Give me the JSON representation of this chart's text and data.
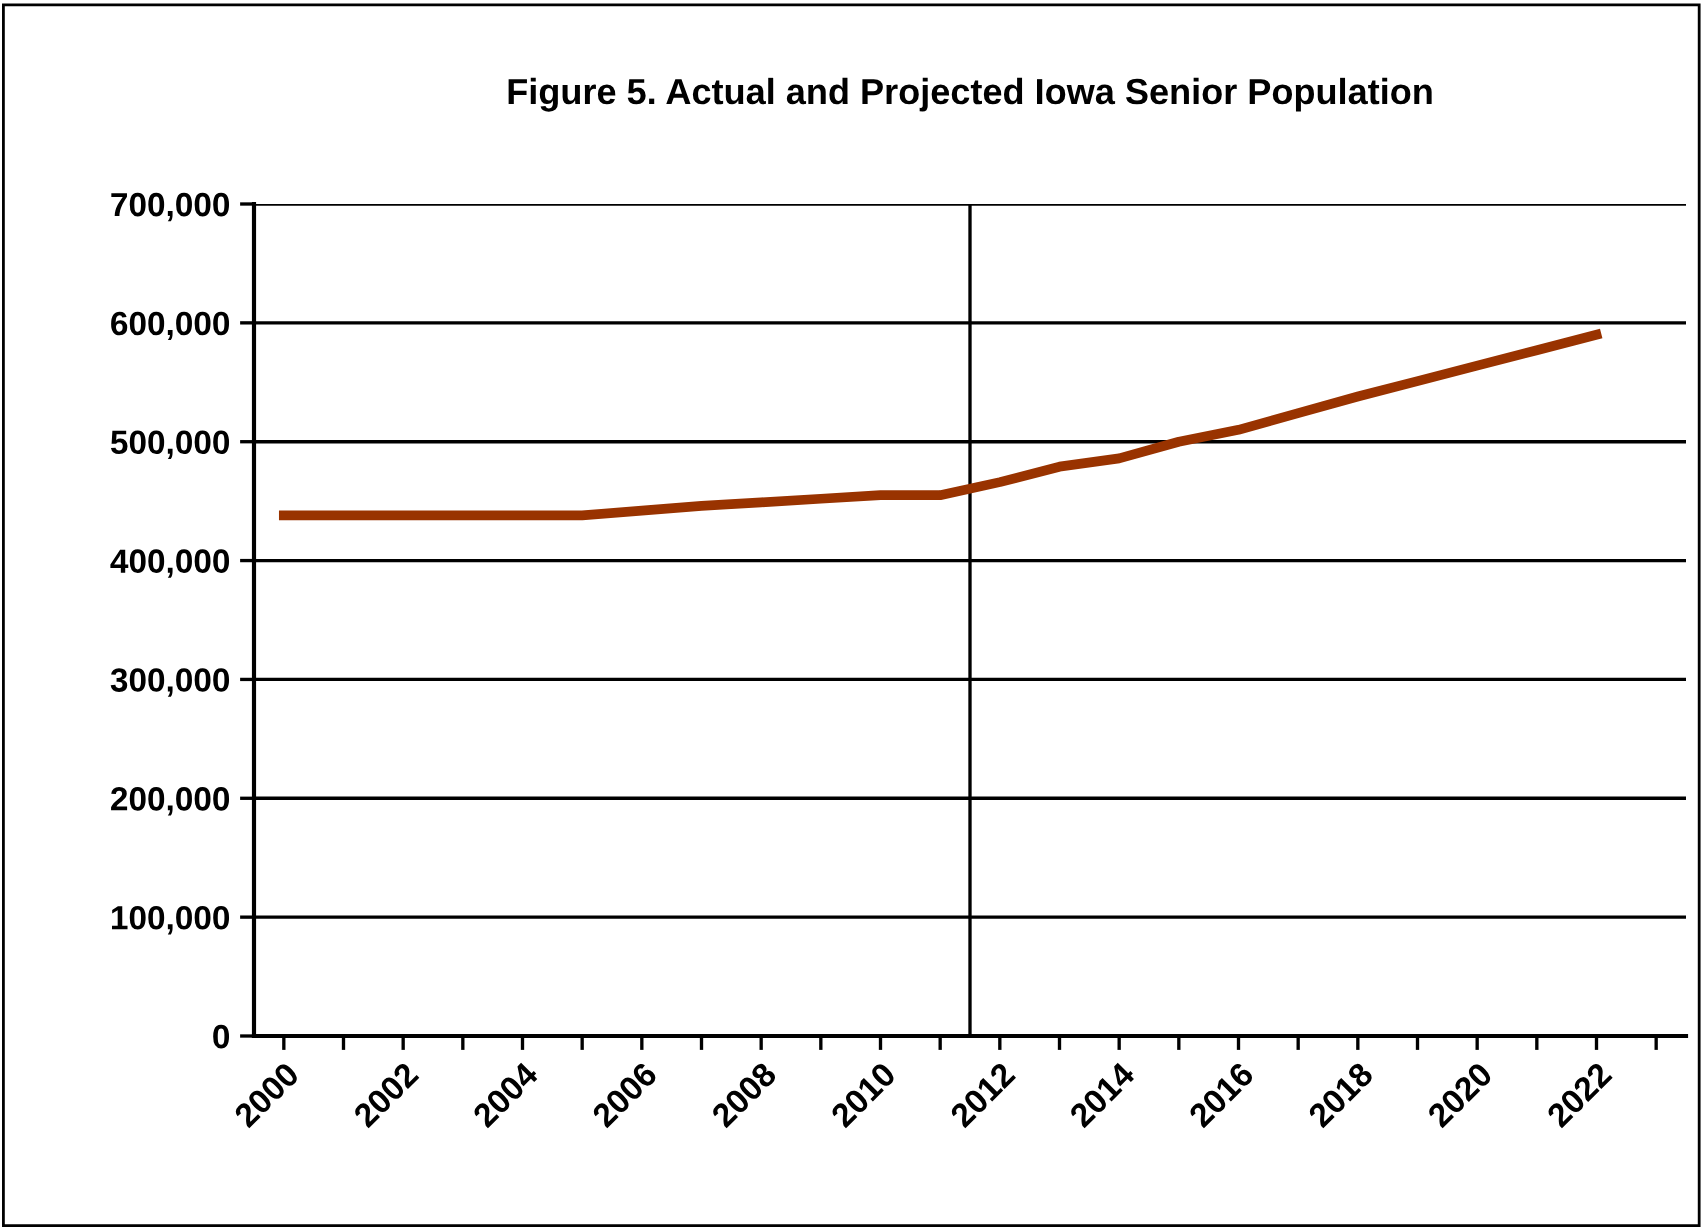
{
  "chart_data": {
    "type": "line",
    "title": "Figure 5. Actual and Projected Iowa Senior Population",
    "x": [
      2000,
      2001,
      2002,
      2003,
      2004,
      2005,
      2006,
      2007,
      2008,
      2009,
      2010,
      2011,
      2012,
      2013,
      2014,
      2015,
      2016,
      2017,
      2018,
      2019,
      2020,
      2021,
      2022
    ],
    "series": [
      {
        "color": "#993300",
        "values": [
          438000,
          438000,
          438000,
          438000,
          438000,
          438000,
          442000,
          446000,
          449000,
          452000,
          455000,
          455000,
          466000,
          479000,
          486000,
          500000,
          510000,
          524000,
          538000,
          551000,
          564000,
          577000,
          590000
        ]
      }
    ],
    "xlim": [
      1999.5,
      2023.5
    ],
    "xticks": [
      2000,
      {
        "value": 2001,
        "label": null
      },
      2002,
      {
        "value": 2003,
        "label": null
      },
      2004,
      {
        "value": 2005,
        "label": null
      },
      2006,
      {
        "value": 2007,
        "label": null
      },
      2008,
      {
        "value": 2009,
        "label": null
      },
      2010,
      {
        "value": 2011,
        "label": null
      },
      2012,
      {
        "value": 2013,
        "label": null
      },
      2014,
      {
        "value": 2015,
        "label": null
      },
      2016,
      {
        "value": 2017,
        "label": null
      },
      2018,
      {
        "value": 2019,
        "label": null
      },
      2020,
      {
        "value": 2021,
        "label": null
      },
      2022,
      {
        "value": 2023,
        "label": null
      }
    ],
    "ylim": [
      0,
      700000
    ],
    "yticks": [
      {
        "value": 0,
        "label": "0"
      },
      {
        "value": 100000,
        "label": "100,000"
      },
      {
        "value": 200000,
        "label": "200,000"
      },
      {
        "value": 300000,
        "label": "300,000"
      },
      {
        "value": 400000,
        "label": "400,000"
      },
      {
        "value": 500000,
        "label": "500,000"
      },
      {
        "value": 600000,
        "label": "600,000"
      },
      {
        "value": 700000,
        "label": "700,000"
      }
    ],
    "ref_lines": [
      {
        "axis": "x",
        "value": 2011.5,
        "color": "#000000"
      }
    ],
    "grid": "y",
    "legend": false,
    "marker": "none",
    "line_style": "solid"
  }
}
